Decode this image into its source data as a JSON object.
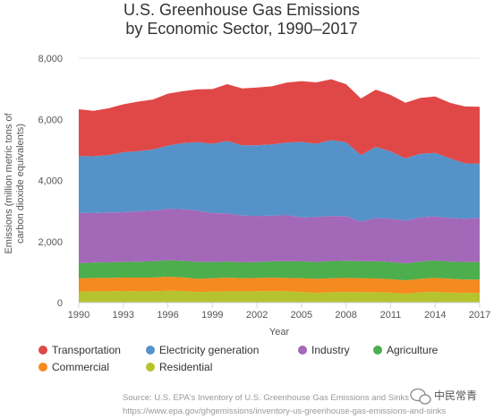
{
  "chart_data": {
    "type": "area",
    "stacked": true,
    "title_line1": "U.S. Greenhouse Gas Emissions",
    "title_line2": "by Economic Sector, 1990–2017",
    "xlabel": "Year",
    "ylabel_line1": "Emissions (million metric tons of",
    "ylabel_line2": "carbon dioxide equivalents)",
    "ylim": [
      0,
      8000
    ],
    "xlim": [
      1990,
      2017
    ],
    "yticks": [
      "0",
      "2,000",
      "4,000",
      "6,000",
      "8,000"
    ],
    "ytick_values": [
      0,
      2000,
      4000,
      6000,
      8000
    ],
    "xticks": [
      "1990",
      "1993",
      "1996",
      "1999",
      "2002",
      "2005",
      "2008",
      "2011",
      "2014",
      "2017"
    ],
    "xtick_values": [
      1990,
      1993,
      1996,
      1999,
      2002,
      2005,
      2008,
      2011,
      2014,
      2017
    ],
    "grid": true,
    "legend_position": "bottom",
    "x": [
      1990,
      1991,
      1992,
      1993,
      1994,
      1995,
      1996,
      1997,
      1998,
      1999,
      2000,
      2001,
      2002,
      2003,
      2004,
      2005,
      2006,
      2007,
      2008,
      2009,
      2010,
      2011,
      2012,
      2013,
      2014,
      2015,
      2016,
      2017
    ],
    "series": [
      {
        "name": "Residential",
        "color": "#b5c42e",
        "values": [
          360,
          370,
          370,
          380,
          370,
          370,
          390,
          380,
          350,
          360,
          370,
          370,
          370,
          380,
          370,
          350,
          320,
          340,
          350,
          340,
          340,
          330,
          290,
          340,
          350,
          330,
          320,
          310
        ]
      },
      {
        "name": "Commercial",
        "color": "#f58a1f",
        "values": [
          430,
          440,
          440,
          440,
          450,
          450,
          460,
          450,
          430,
          440,
          450,
          430,
          440,
          440,
          440,
          450,
          460,
          460,
          460,
          460,
          450,
          440,
          440,
          440,
          460,
          450,
          440,
          440
        ]
      },
      {
        "name": "Agriculture",
        "color": "#4cae4c",
        "values": [
          500,
          500,
          510,
          510,
          520,
          530,
          540,
          540,
          550,
          530,
          520,
          520,
          520,
          530,
          540,
          550,
          550,
          560,
          560,
          550,
          560,
          560,
          550,
          560,
          570,
          560,
          570,
          580
        ]
      },
      {
        "name": "Industry",
        "color": "#a468b8",
        "values": [
          1650,
          1620,
          1630,
          1630,
          1650,
          1660,
          1680,
          1690,
          1680,
          1600,
          1580,
          1530,
          1510,
          1500,
          1510,
          1440,
          1470,
          1480,
          1460,
          1300,
          1420,
          1420,
          1400,
          1450,
          1440,
          1430,
          1420,
          1440
        ]
      },
      {
        "name": "Electricity generation",
        "color": "#5592c9",
        "values": [
          1860,
          1860,
          1880,
          1960,
          1970,
          2000,
          2070,
          2160,
          2240,
          2270,
          2370,
          2300,
          2310,
          2330,
          2380,
          2470,
          2400,
          2480,
          2420,
          2180,
          2330,
          2200,
          2040,
          2080,
          2080,
          1950,
          1810,
          1780
        ]
      },
      {
        "name": "Transportation",
        "color": "#e04848",
        "values": [
          1530,
          1490,
          1530,
          1570,
          1620,
          1640,
          1700,
          1700,
          1730,
          1790,
          1860,
          1860,
          1890,
          1900,
          1960,
          1990,
          2010,
          1990,
          1900,
          1850,
          1870,
          1850,
          1820,
          1830,
          1850,
          1820,
          1860,
          1860
        ]
      }
    ]
  },
  "legend": {
    "items": [
      {
        "label": "Transportation",
        "color": "#e04848"
      },
      {
        "label": "Electricity generation",
        "color": "#5592c9"
      },
      {
        "label": "Industry",
        "color": "#a468b8"
      },
      {
        "label": "Agriculture",
        "color": "#4cae4c"
      },
      {
        "label": "Commercial",
        "color": "#f58a1f"
      },
      {
        "label": "Residential",
        "color": "#b5c42e"
      }
    ]
  },
  "source": {
    "line1": "Source: U.S. EPA's Inventory of U.S. Greenhouse Gas Emissions and Sinks",
    "line2": "https://www.epa.gov/ghgemissions/inventory-us-greenhouse-gas-emissions-and-sinks"
  },
  "watermark": {
    "text": "中民常青"
  }
}
